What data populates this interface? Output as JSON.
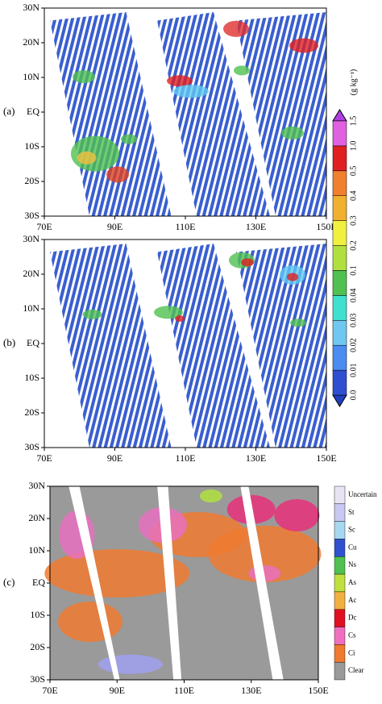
{
  "panels": [
    {
      "label": "(a)",
      "y_labels": [
        "30N",
        "20N",
        "10N",
        "EQ",
        "10S",
        "20S",
        "30S"
      ],
      "x_labels": [
        "70E",
        "90E",
        "110E",
        "130E",
        "150E"
      ]
    },
    {
      "label": "(b)",
      "y_labels": [
        "30N",
        "20N",
        "10N",
        "EQ",
        "10S",
        "20S",
        "30S"
      ],
      "x_labels": [
        "70E",
        "90E",
        "110E",
        "130E",
        "150E"
      ]
    },
    {
      "label": "(c)",
      "y_labels": [
        "30N",
        "20N",
        "10N",
        "EQ",
        "10S",
        "20S",
        "30S"
      ],
      "x_labels": [
        "70E",
        "90E",
        "110E",
        "130E",
        "150E"
      ]
    }
  ],
  "colorbar": {
    "unit": "(g kg⁻¹)",
    "labels": [
      "0.0",
      "0.01",
      "0.02",
      "0.03",
      "0.04",
      "0.1",
      "0.2",
      "0.3",
      "0.4",
      "0.5",
      "1.0",
      "1.5"
    ]
  },
  "legend": {
    "labels": [
      "Uncertain",
      "St",
      "Sc",
      "Cu",
      "Ns",
      "As",
      "Ac",
      "Dc",
      "Cs",
      "Ci",
      "Clear"
    ]
  }
}
